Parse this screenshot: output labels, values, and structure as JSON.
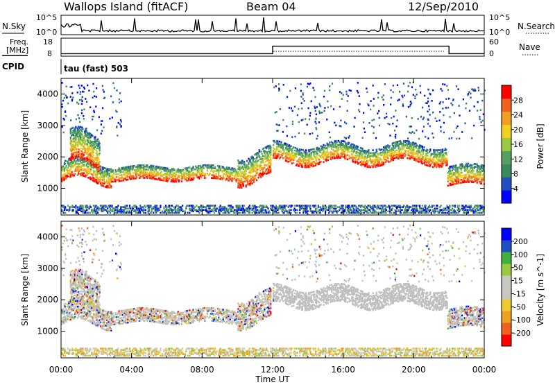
{
  "header": {
    "station": "Wallops Island (fitACF)",
    "beam": "Beam 04",
    "date": "12/Sep/2010"
  },
  "noise_panel": {
    "left_label": "N.Sky",
    "right_label": "N.Search",
    "left_ticks": [
      "10^5",
      "10^0"
    ],
    "right_ticks": [
      "10^5",
      "10^0"
    ]
  },
  "freq_panel": {
    "left_label_1": "Freq.",
    "left_label_2": "[MHz]",
    "left_ticks": [
      "18",
      "8"
    ],
    "right_label": "Nave",
    "right_ticks": [
      "60",
      "0"
    ]
  },
  "cpid_panel": {
    "label": "CPID",
    "text": "tau (fast) 503"
  },
  "colors": {
    "power_scale": [
      "#0000ff",
      "#2050c0",
      "#3a8a5a",
      "#55a060",
      "#9ac840",
      "#f0d020",
      "#f0a020",
      "#f06020",
      "#ff0000"
    ],
    "velocity_scale": [
      "#ff0000",
      "#f06020",
      "#f0a020",
      "#f0c830",
      "#c8c8c0",
      "#c8c8c0",
      "#9ac840",
      "#40b040",
      "#2050c0",
      "#0000ff"
    ],
    "ground_scatter": "#bebebe"
  },
  "chart_data": [
    {
      "type": "heatmap",
      "name": "power",
      "ylabel": "Slant Range [km]",
      "yticks": [
        1000,
        2000,
        3000,
        4000
      ],
      "ylim": [
        150,
        4500
      ],
      "xticks": [
        "00:00",
        "04:00",
        "08:00",
        "12:00",
        "16:00",
        "20:00",
        "00:00"
      ],
      "xlim_hours": [
        0,
        24
      ],
      "colorbar_label": "Power [dB]",
      "colorbar_ticks": [
        "28",
        "24",
        "20",
        "16",
        "12",
        "8",
        "4"
      ],
      "colorbar_range": [
        0,
        32
      ]
    },
    {
      "type": "heatmap",
      "name": "velocity",
      "ylabel": "Slant Range [km]",
      "yticks": [
        1000,
        2000,
        3000,
        4000
      ],
      "ylim": [
        150,
        4500
      ],
      "xticks": [
        "00:00",
        "04:00",
        "08:00",
        "12:00",
        "16:00",
        "20:00",
        "00:00"
      ],
      "xlim_hours": [
        0,
        24
      ],
      "xlabel": "Time UT",
      "colorbar_label": "Velocity [m s^-1]",
      "colorbar_ticks": [
        "200",
        "100",
        "50",
        "15",
        "-15",
        "-50",
        "-100",
        "-200"
      ]
    }
  ],
  "freq_series": {
    "hours": [
      0,
      12,
      12,
      22,
      22,
      24
    ],
    "mhz": [
      10,
      10,
      16,
      16,
      10,
      10
    ]
  }
}
